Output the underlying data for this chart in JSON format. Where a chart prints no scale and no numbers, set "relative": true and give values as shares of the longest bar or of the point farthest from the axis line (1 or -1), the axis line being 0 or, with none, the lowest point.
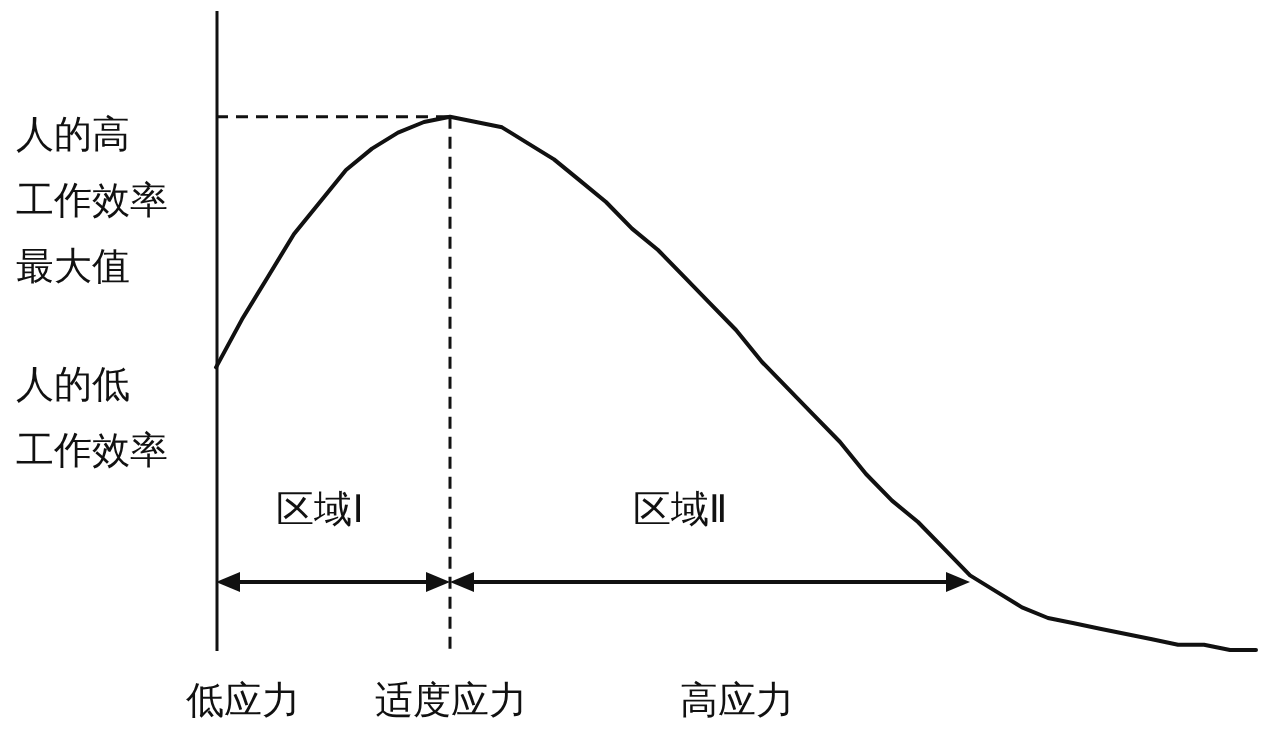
{
  "chart_data": {
    "type": "line",
    "relative": true,
    "categories": [
      null,
      "低应力",
      null,
      null,
      null,
      null,
      null,
      null,
      null,
      "适度应力",
      null,
      null,
      null,
      null,
      null,
      null,
      null,
      null,
      null,
      null,
      "高应力",
      null,
      null,
      null,
      null,
      null,
      null,
      null,
      null,
      null,
      null,
      null,
      null,
      null,
      null,
      null,
      null,
      null,
      null,
      null,
      null
    ],
    "series": [
      {
        "color": "#111111",
        "values": [
          0.53,
          0.62,
          0.7,
          0.78,
          0.84,
          0.9,
          0.94,
          0.97,
          0.99,
          1,
          0.99,
          0.98,
          0.95,
          0.92,
          0.88,
          0.84,
          0.79,
          0.75,
          0.7,
          0.65,
          0.6,
          0.54,
          0.49,
          0.44,
          0.39,
          0.33,
          0.28,
          0.24,
          0.19,
          0.14,
          0.11,
          0.08,
          0.06,
          0.05,
          0.04,
          0.03,
          0.02,
          0.01,
          0.01,
          0,
          0
        ]
      }
    ],
    "ref_lines": [
      {
        "axis": "y",
        "value": 1,
        "label": "人的高工作效率最大值",
        "line_style": "dashed"
      },
      {
        "axis": "x",
        "value": "适度应力",
        "line_style": "dashed"
      }
    ],
    "annotations": [
      "人的低工作效率",
      "区域Ⅰ",
      "区域Ⅱ"
    ],
    "line_style": "solid",
    "grid": false
  }
}
